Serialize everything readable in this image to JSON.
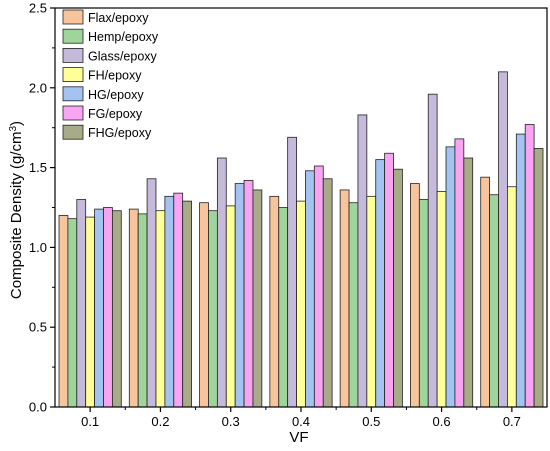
{
  "chart_data": {
    "type": "bar",
    "xlabel": "VF",
    "ylabel_main": "Composite Density (g/cm",
    "ylabel_sup": "3",
    "ylabel_close": ")",
    "ylim": [
      0,
      2.5
    ],
    "yticks": [
      "0.0",
      "0.5",
      "1.0",
      "1.5",
      "2.0",
      "2.5"
    ],
    "ytick_values": [
      0,
      0.5,
      1.0,
      1.5,
      2.0,
      2.5
    ],
    "categories": [
      "0.1",
      "0.2",
      "0.3",
      "0.4",
      "0.5",
      "0.6",
      "0.7"
    ],
    "legend_position": "top-left",
    "series": [
      {
        "name": "Flax/epoxy",
        "color": "#f8c49c",
        "values": [
          1.2,
          1.24,
          1.28,
          1.32,
          1.36,
          1.4,
          1.44
        ]
      },
      {
        "name": "Hemp/epoxy",
        "color": "#9fd49a",
        "values": [
          1.18,
          1.21,
          1.23,
          1.25,
          1.28,
          1.3,
          1.33
        ]
      },
      {
        "name": "Glass/epoxy",
        "color": "#c5b9dc",
        "values": [
          1.3,
          1.43,
          1.56,
          1.69,
          1.83,
          1.96,
          2.1
        ]
      },
      {
        "name": "FH/epoxy",
        "color": "#ffff99",
        "values": [
          1.19,
          1.23,
          1.26,
          1.29,
          1.32,
          1.35,
          1.38
        ]
      },
      {
        "name": "HG/epoxy",
        "color": "#a3c4f0",
        "values": [
          1.24,
          1.32,
          1.4,
          1.48,
          1.55,
          1.63,
          1.71
        ]
      },
      {
        "name": "FG/epoxy",
        "color": "#f7a4f2",
        "values": [
          1.25,
          1.34,
          1.42,
          1.51,
          1.59,
          1.68,
          1.77
        ]
      },
      {
        "name": "FHG/epoxy",
        "color": "#a8ab88",
        "values": [
          1.23,
          1.29,
          1.36,
          1.43,
          1.49,
          1.56,
          1.62
        ]
      }
    ]
  }
}
